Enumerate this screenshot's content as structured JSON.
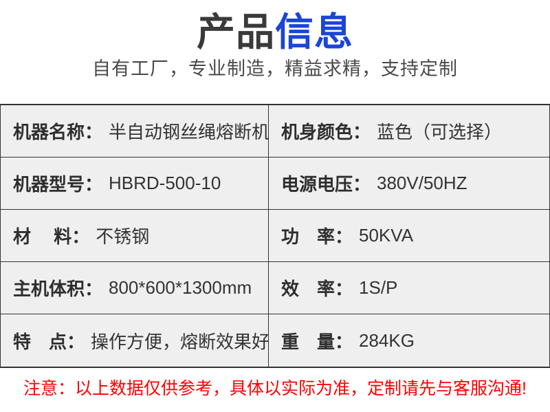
{
  "title": {
    "part_dark": "产品",
    "part_blue": "信息"
  },
  "subtitle": "自有工厂，专业制造，精益求精，支持定制",
  "colors": {
    "accent_blue": "#1c45d6",
    "title_dark": "#3a3a3a",
    "cell_background": "#efefef",
    "table_border": "#333333",
    "note_red": "#ff0000"
  },
  "table": {
    "left_rows": [
      {
        "label": "机器名称：",
        "value": "半自动钢丝绳熔断机"
      },
      {
        "label": "机器型号：",
        "value": "HBRD-500-10"
      },
      {
        "label": "材　 料：",
        "value": "不锈钢"
      },
      {
        "label": "主机体积：",
        "value": "800*600*1300mm"
      },
      {
        "label": "特　点：",
        "value": "操作方便，熔断效果好"
      }
    ],
    "right_rows": [
      {
        "label": "机身颜色：",
        "value": "蓝色（可选择）"
      },
      {
        "label": "电源电压：",
        "value": "380V/50HZ"
      },
      {
        "label": "功　率：",
        "value": "50KVA"
      },
      {
        "label": "效　率：",
        "value": "1S/P"
      },
      {
        "label": "重　量：",
        "value": "284KG"
      }
    ]
  },
  "note": "注意：以上数据仅供参考，具体以实际为准，定制请先与客服沟通!"
}
